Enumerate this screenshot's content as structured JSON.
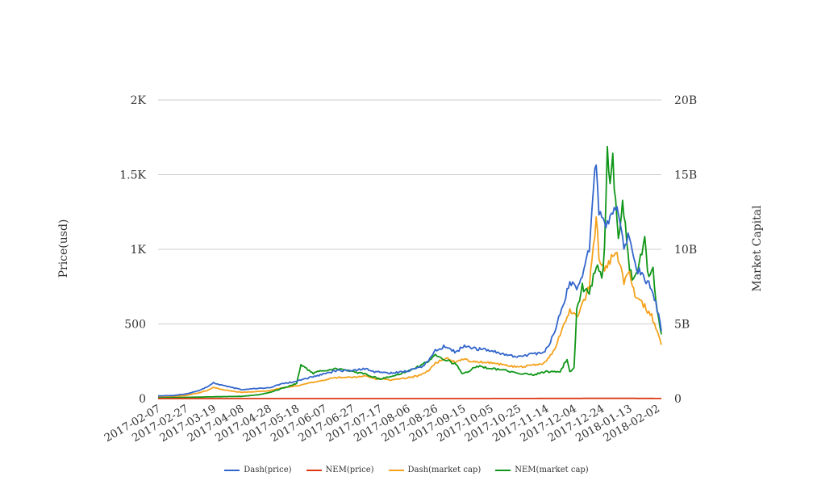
{
  "chart_data": {
    "type": "line",
    "xlabel": "",
    "ylabel": "Price(usd)",
    "y2label": "Market Capital",
    "x_ticks": [
      "2017-02-07",
      "2017-02-27",
      "2017-03-19",
      "2017-04-08",
      "2017-04-28",
      "2017-05-18",
      "2017-06-07",
      "2017-06-27",
      "2017-07-17",
      "2017-08-06",
      "2017-08-26",
      "2017-09-15",
      "2017-10-05",
      "2017-10-25",
      "2017-11-14",
      "2017-12-04",
      "2017-12-24",
      "2018-01-13",
      "2018-02-02"
    ],
    "xlim": [
      "2017-02-07",
      "2018-02-05"
    ],
    "ylim": [
      0,
      2000
    ],
    "y_ticks": [
      0,
      500,
      1000,
      1500,
      2000
    ],
    "y_tick_labels": [
      "0",
      "500",
      "1K",
      "1.5K",
      "2K"
    ],
    "y2lim": [
      0,
      20000000000
    ],
    "y2_ticks": [
      0,
      5000000000,
      10000000000,
      15000000000,
      20000000000
    ],
    "y2_tick_labels": [
      "0",
      "5B",
      "10B",
      "15B",
      "20B"
    ],
    "grid": true,
    "legend_position": "bottom",
    "series": [
      {
        "name": "Dash(price)",
        "axis": "left",
        "color": "#3366cc",
        "x": [
          "2017-02-07",
          "2017-02-17",
          "2017-02-27",
          "2017-03-09",
          "2017-03-15",
          "2017-03-19",
          "2017-03-25",
          "2017-04-01",
          "2017-04-08",
          "2017-04-15",
          "2017-04-28",
          "2017-05-08",
          "2017-05-18",
          "2017-05-25",
          "2017-06-05",
          "2017-06-15",
          "2017-06-27",
          "2017-07-08",
          "2017-07-14",
          "2017-07-17",
          "2017-07-25",
          "2017-08-06",
          "2017-08-15",
          "2017-08-20",
          "2017-08-26",
          "2017-09-03",
          "2017-09-10",
          "2017-09-15",
          "2017-09-20",
          "2017-10-05",
          "2017-10-15",
          "2017-10-25",
          "2017-11-05",
          "2017-11-12",
          "2017-11-14",
          "2017-11-20",
          "2017-11-25",
          "2017-12-01",
          "2017-12-06",
          "2017-12-10",
          "2017-12-15",
          "2017-12-19",
          "2017-12-20",
          "2017-12-22",
          "2017-12-26",
          "2017-12-30",
          "2018-01-04",
          "2018-01-09",
          "2018-01-13",
          "2018-01-18",
          "2018-01-24",
          "2018-01-29",
          "2018-02-02",
          "2018-02-05"
        ],
        "values": [
          18,
          20,
          30,
          55,
          80,
          105,
          90,
          75,
          60,
          65,
          72,
          100,
          115,
          135,
          160,
          185,
          190,
          200,
          175,
          180,
          170,
          185,
          210,
          240,
          320,
          355,
          310,
          350,
          340,
          320,
          300,
          280,
          300,
          310,
          330,
          440,
          600,
          790,
          720,
          840,
          1000,
          1500,
          1560,
          1250,
          1150,
          1200,
          1270,
          1000,
          1100,
          870,
          810,
          730,
          600,
          450
        ]
      },
      {
        "name": "NEM(price)",
        "axis": "left",
        "color": "#dc3912",
        "x": [
          "2017-02-07",
          "2017-06-01",
          "2017-10-01",
          "2018-01-07",
          "2018-02-05"
        ],
        "values": [
          0.01,
          0.2,
          0.2,
          1.8,
          0.6
        ]
      },
      {
        "name": "Dash(market cap)",
        "axis": "right",
        "color": "#f4a21c",
        "x": [
          "2017-02-07",
          "2017-02-17",
          "2017-02-27",
          "2017-03-09",
          "2017-03-15",
          "2017-03-19",
          "2017-03-25",
          "2017-04-01",
          "2017-04-08",
          "2017-04-15",
          "2017-04-28",
          "2017-05-08",
          "2017-05-18",
          "2017-05-25",
          "2017-06-05",
          "2017-06-15",
          "2017-06-27",
          "2017-07-08",
          "2017-07-14",
          "2017-07-17",
          "2017-07-25",
          "2017-08-06",
          "2017-08-15",
          "2017-08-20",
          "2017-08-26",
          "2017-09-03",
          "2017-09-10",
          "2017-09-15",
          "2017-09-20",
          "2017-10-05",
          "2017-10-15",
          "2017-10-25",
          "2017-11-05",
          "2017-11-12",
          "2017-11-14",
          "2017-11-20",
          "2017-11-25",
          "2017-12-01",
          "2017-12-06",
          "2017-12-10",
          "2017-12-15",
          "2017-12-19",
          "2017-12-20",
          "2017-12-22",
          "2017-12-26",
          "2017-12-30",
          "2018-01-04",
          "2018-01-09",
          "2018-01-13",
          "2018-01-18",
          "2018-01-24",
          "2018-01-29",
          "2018-02-02",
          "2018-02-05"
        ],
        "values": [
          120000000,
          150000000,
          200000000,
          400000000,
          550000000,
          750000000,
          600000000,
          500000000,
          420000000,
          450000000,
          520000000,
          720000000,
          850000000,
          1000000000,
          1200000000,
          1400000000,
          1450000000,
          1500000000,
          1300000000,
          1350000000,
          1250000000,
          1400000000,
          1550000000,
          1800000000,
          2400000000,
          2700000000,
          2400000000,
          2650000000,
          2550000000,
          2400000000,
          2250000000,
          2100000000,
          2250000000,
          2350000000,
          2500000000,
          3300000000,
          4500000000,
          6000000000,
          5500000000,
          6300000000,
          7500000000,
          11000000000,
          12200000000,
          9500000000,
          8800000000,
          9300000000,
          9800000000,
          7800000000,
          8500000000,
          6700000000,
          6200000000,
          5500000000,
          4600000000,
          3600000000
        ]
      },
      {
        "name": "NEM(market cap)",
        "axis": "right",
        "color": "#109618",
        "x": [
          "2017-02-07",
          "2017-02-27",
          "2017-03-19",
          "2017-04-08",
          "2017-04-20",
          "2017-04-28",
          "2017-05-08",
          "2017-05-18",
          "2017-05-21",
          "2017-05-25",
          "2017-05-30",
          "2017-06-07",
          "2017-06-17",
          "2017-06-27",
          "2017-07-08",
          "2017-07-17",
          "2017-07-25",
          "2017-08-06",
          "2017-08-15",
          "2017-08-22",
          "2017-08-26",
          "2017-09-05",
          "2017-09-10",
          "2017-09-14",
          "2017-09-18",
          "2017-09-25",
          "2017-10-05",
          "2017-10-15",
          "2017-10-25",
          "2017-11-05",
          "2017-11-14",
          "2017-11-24",
          "2017-11-29",
          "2017-12-01",
          "2017-12-04",
          "2017-12-06",
          "2017-12-10",
          "2017-12-15",
          "2017-12-20",
          "2017-12-24",
          "2017-12-26",
          "2017-12-28",
          "2017-12-30",
          "2018-01-01",
          "2018-01-03",
          "2018-01-05",
          "2018-01-08",
          "2018-01-10",
          "2018-01-13",
          "2018-01-16",
          "2018-01-20",
          "2018-01-24",
          "2018-01-27",
          "2018-01-30",
          "2018-02-02",
          "2018-02-05"
        ],
        "values": [
          50000000,
          80000000,
          120000000,
          150000000,
          250000000,
          400000000,
          700000000,
          1000000000,
          2300000000,
          2000000000,
          1700000000,
          1900000000,
          2000000000,
          1800000000,
          1600000000,
          1300000000,
          1500000000,
          1800000000,
          2200000000,
          2600000000,
          2900000000,
          2500000000,
          2300000000,
          1700000000,
          1800000000,
          2200000000,
          2000000000,
          1900000000,
          1700000000,
          1600000000,
          1800000000,
          1800000000,
          2700000000,
          1800000000,
          2000000000,
          6000000000,
          7500000000,
          7000000000,
          9000000000,
          8000000000,
          10000000000,
          16500000000,
          14000000000,
          16000000000,
          13000000000,
          11000000000,
          13000000000,
          12000000000,
          8500000000,
          8000000000,
          9000000000,
          10500000000,
          8000000000,
          8500000000,
          6000000000,
          4300000000
        ]
      }
    ]
  }
}
